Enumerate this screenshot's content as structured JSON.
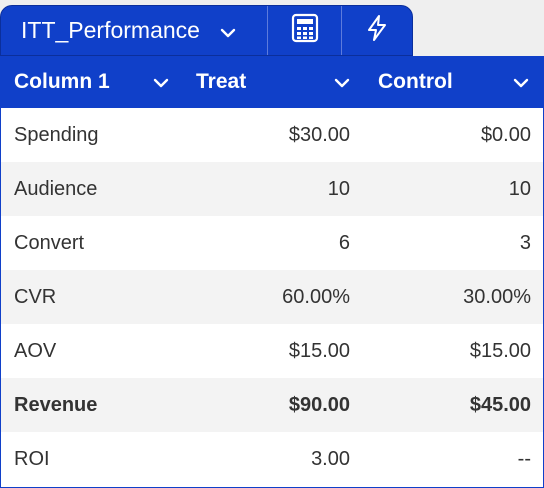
{
  "tab": {
    "title": "ITT_Performance",
    "icons": [
      "calculator-icon",
      "lightning-icon"
    ]
  },
  "table": {
    "columns": [
      "Column 1",
      "Treat",
      "Control"
    ],
    "rows": [
      [
        "Spending",
        "$30.00",
        "$0.00"
      ],
      [
        "Audience",
        "10",
        "10"
      ],
      [
        "Convert",
        "6",
        "3"
      ],
      [
        "CVR",
        "60.00%",
        "30.00%"
      ],
      [
        "AOV",
        "$15.00",
        "$15.00"
      ],
      [
        "Revenue",
        "$90.00",
        "$45.00"
      ],
      [
        "ROI",
        "3.00",
        "--"
      ]
    ],
    "bold_row_index": 5
  },
  "colors": {
    "accent": "#1040c9",
    "header_text": "#ffffff",
    "row_alt": "#f3f3f3"
  }
}
